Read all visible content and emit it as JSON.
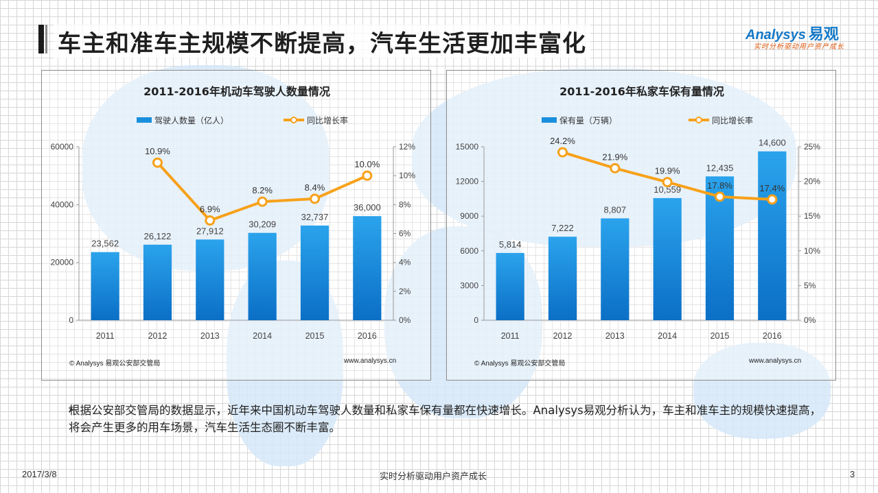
{
  "header": {
    "title": "车主和准车主规模不断提高，汽车生活更加丰富化",
    "logo_brand": "Analysys",
    "logo_brand_cn": "易观",
    "logo_tagline": "实时分析驱动用户资产成长"
  },
  "chart_data": [
    {
      "type": "bar",
      "title": "2011-2016年机动车驾驶人数量情况",
      "categories": [
        "2011",
        "2012",
        "2013",
        "2014",
        "2015",
        "2016"
      ],
      "series": [
        {
          "name": "驾驶人数量（亿人）",
          "type": "bar",
          "axis": "left",
          "values": [
            23562,
            26122,
            27912,
            30209,
            32737,
            36000
          ],
          "labels": [
            "23,562",
            "26,122",
            "27,912",
            "30,209",
            "32,737",
            "36,000"
          ]
        },
        {
          "name": "同比增长率",
          "type": "line",
          "axis": "right",
          "values": [
            null,
            10.9,
            6.9,
            8.2,
            8.4,
            10.0
          ],
          "labels": [
            "",
            "10.9%",
            "6.9%",
            "8.2%",
            "8.4%",
            "10.0%"
          ]
        }
      ],
      "ylim": [
        0,
        60000
      ],
      "yticks": [
        "0",
        "20000",
        "40000",
        "60000"
      ],
      "y2lim": [
        0,
        12
      ],
      "y2ticks": [
        "0%",
        "2%",
        "4%",
        "6%",
        "8%",
        "10%",
        "12%"
      ],
      "legend_position": "top",
      "source": "© Analysys 易观公安部交管局",
      "website": "www.analysys.cn",
      "colors": {
        "bar": "#1a8fdd",
        "line": "#f7a11a"
      }
    },
    {
      "type": "bar",
      "title": "2011-2016年私家车保有量情况",
      "categories": [
        "2011",
        "2012",
        "2013",
        "2014",
        "2015",
        "2016"
      ],
      "series": [
        {
          "name": "保有量（万辆）",
          "type": "bar",
          "axis": "left",
          "values": [
            5814,
            7222,
            8807,
            10559,
            12435,
            14600
          ],
          "labels": [
            "5,814",
            "7,222",
            "8,807",
            "10,559",
            "12,435",
            "14,600"
          ]
        },
        {
          "name": "同比增长率",
          "type": "line",
          "axis": "right",
          "values": [
            null,
            24.2,
            21.9,
            19.9,
            17.8,
            17.4
          ],
          "labels": [
            "",
            "24.2%",
            "21.9%",
            "19.9%",
            "17.8%",
            "17.4%"
          ]
        }
      ],
      "ylim": [
        0,
        15000
      ],
      "yticks": [
        "0",
        "3000",
        "6000",
        "9000",
        "12000",
        "15000"
      ],
      "y2lim": [
        0,
        25
      ],
      "y2ticks": [
        "0%",
        "5%",
        "10%",
        "15%",
        "20%",
        "25%"
      ],
      "legend_position": "top",
      "source": "© Analysys 易观公安部交管局",
      "website": "www.analysys.cn",
      "colors": {
        "bar": "#1a8fdd",
        "line": "#f7a11a"
      }
    }
  ],
  "summary": {
    "bullet_icon": "arrow-bullet-icon",
    "text": "根据公安部交管局的数据显示，近年来中国机动车驾驶人数量和私家车保有量都在快速增长。Analysys易观分析认为，车主和准车主的规模快速提高，将会产生更多的用车场景，汽车生活生态圈不断丰富。"
  },
  "footer": {
    "date": "2017/3/8",
    "center": "实时分析驱动用户资产成长",
    "page": "3"
  }
}
